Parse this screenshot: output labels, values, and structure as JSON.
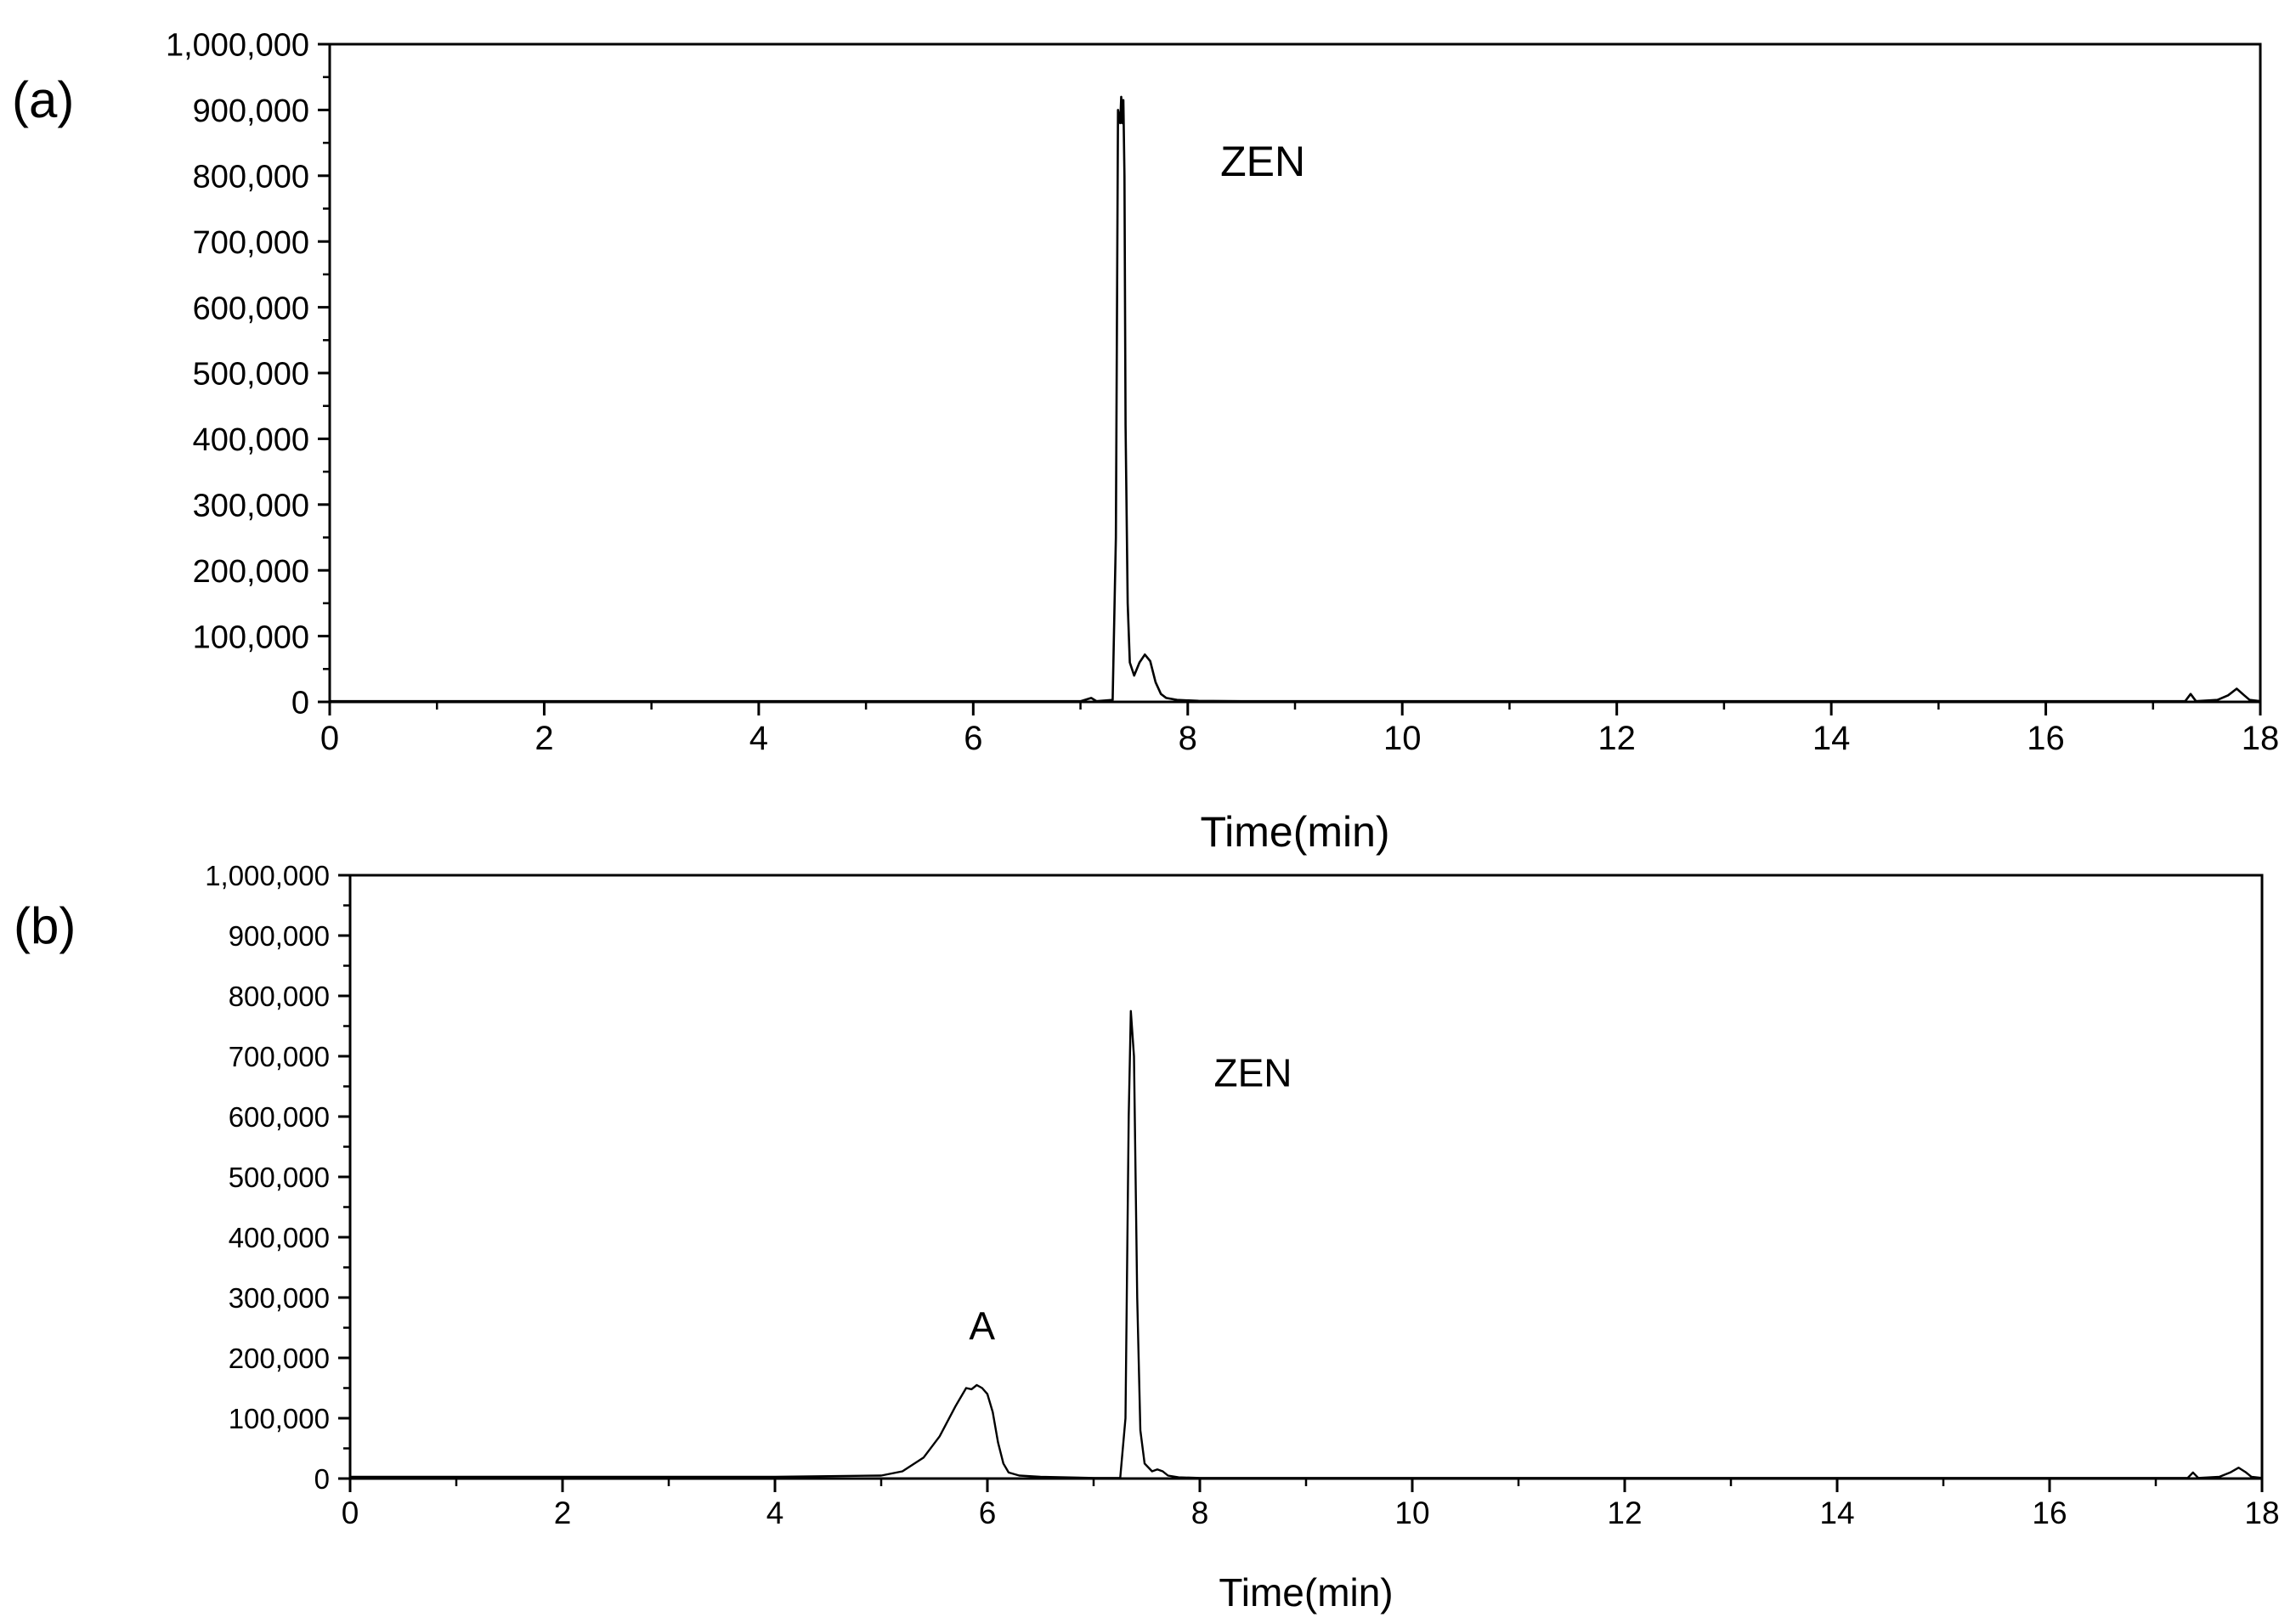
{
  "chart_data": [
    {
      "type": "line",
      "panel_label": "(a)",
      "xlabel": "Time(min)",
      "ylabel": "",
      "xlim": [
        0,
        18
      ],
      "ylim": [
        0,
        1000000
      ],
      "xticks": [
        "0",
        "2",
        "4",
        "6",
        "8",
        "10",
        "12",
        "14",
        "16",
        "18"
      ],
      "yticks": [
        "0",
        "100,000",
        "200,000",
        "300,000",
        "400,000",
        "500,000",
        "600,000",
        "700,000",
        "800,000",
        "900,000",
        "1,000,000"
      ],
      "grid": false,
      "annotations": [
        {
          "text": "ZEN",
          "x": 8.7,
          "y": 800000
        }
      ],
      "series": [
        {
          "x": [
            0,
            2,
            4,
            6,
            7.0,
            7.1,
            7.15,
            7.3,
            7.33,
            7.35,
            7.37,
            7.38,
            7.39,
            7.4,
            7.41,
            7.42,
            7.44,
            7.46,
            7.5,
            7.55,
            7.6,
            7.65,
            7.7,
            7.75,
            7.8,
            7.9,
            8.1,
            8.5,
            10,
            12,
            14,
            16,
            17.3,
            17.35,
            17.4,
            17.6,
            17.7,
            17.78,
            17.85,
            17.9,
            18
          ],
          "y": [
            1000,
            1000,
            1000,
            1000,
            1000,
            6000,
            1000,
            3000,
            250000,
            900000,
            880000,
            920000,
            880000,
            915000,
            800000,
            420000,
            150000,
            60000,
            40000,
            60000,
            72000,
            62000,
            30000,
            12000,
            6000,
            3000,
            1500,
            1000,
            1000,
            1000,
            1000,
            1000,
            1000,
            12000,
            1000,
            3000,
            10000,
            20000,
            10000,
            3000,
            1000
          ]
        }
      ]
    },
    {
      "type": "line",
      "panel_label": "(b)",
      "xlabel": "Time(min)",
      "ylabel": "",
      "xlim": [
        0,
        18
      ],
      "ylim": [
        0,
        1000000
      ],
      "xticks": [
        "0",
        "2",
        "4",
        "6",
        "8",
        "10",
        "12",
        "14",
        "16",
        "18"
      ],
      "yticks": [
        "0",
        "100,000",
        "200,000",
        "300,000",
        "400,000",
        "500,000",
        "600,000",
        "700,000",
        "800,000",
        "900,000",
        "1,000,000"
      ],
      "grid": false,
      "annotations": [
        {
          "text": "A",
          "x": 5.95,
          "y": 230000
        },
        {
          "text": "ZEN",
          "x": 8.5,
          "y": 650000
        }
      ],
      "series": [
        {
          "x": [
            0,
            2,
            4,
            5.0,
            5.2,
            5.4,
            5.55,
            5.7,
            5.8,
            5.85,
            5.9,
            5.95,
            6.0,
            6.05,
            6.1,
            6.15,
            6.2,
            6.3,
            6.5,
            7.0,
            7.25,
            7.3,
            7.33,
            7.35,
            7.38,
            7.41,
            7.44,
            7.48,
            7.55,
            7.6,
            7.65,
            7.7,
            7.8,
            8.0,
            8.5,
            10,
            12,
            14,
            16,
            17.3,
            17.35,
            17.4,
            17.6,
            17.7,
            17.78,
            17.85,
            17.9,
            18
          ],
          "y": [
            3000,
            3000,
            3000,
            5000,
            12000,
            35000,
            70000,
            120000,
            150000,
            148000,
            155000,
            150000,
            140000,
            110000,
            60000,
            25000,
            10000,
            5000,
            3000,
            1000,
            1000,
            100000,
            600000,
            775000,
            700000,
            300000,
            80000,
            25000,
            12000,
            15000,
            12000,
            5000,
            2000,
            1000,
            1000,
            1000,
            1000,
            1000,
            1000,
            1000,
            10000,
            1000,
            3000,
            10000,
            18000,
            10000,
            3000,
            1000
          ]
        }
      ]
    }
  ]
}
